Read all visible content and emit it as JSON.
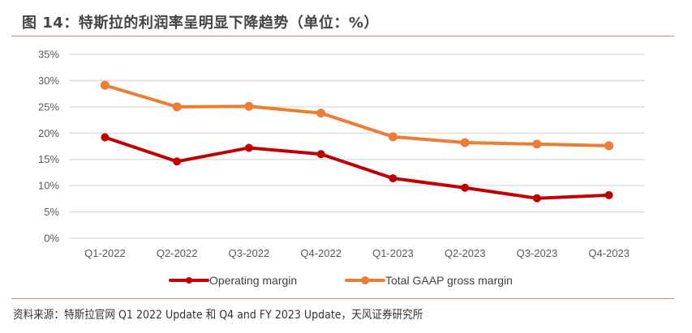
{
  "header": {
    "title": "图 14：特斯拉的利润率呈明显下降趋势（单位：%）"
  },
  "footer": {
    "source": "资料来源：特斯拉官网 Q1 2022 Update 和 Q4 and FY 2023 Update，天风证券研究所"
  },
  "chart_data": {
    "type": "line",
    "title": "特斯拉的利润率呈明显下降趋势（单位：%）",
    "xlabel": "",
    "ylabel": "",
    "categories": [
      "Q1-2022",
      "Q2-2022",
      "Q3-2022",
      "Q4-2022",
      "Q1-2023",
      "Q2-2023",
      "Q3-2023",
      "Q4-2023"
    ],
    "ylim": [
      0,
      35
    ],
    "yticks": [
      0,
      5,
      10,
      15,
      20,
      25,
      30,
      35
    ],
    "ytick_labels": [
      "0%",
      "5%",
      "10%",
      "15%",
      "20%",
      "25%",
      "30%",
      "35%"
    ],
    "grid": true,
    "legend_position": "bottom",
    "series": [
      {
        "name": "Operating margin",
        "color": "#c00000",
        "values": [
          19.2,
          14.6,
          17.2,
          16.0,
          11.4,
          9.6,
          7.6,
          8.2
        ]
      },
      {
        "name": "Total GAAP gross margin",
        "color": "#ed7d31",
        "values": [
          29.1,
          25.0,
          25.1,
          23.8,
          19.3,
          18.2,
          17.9,
          17.6
        ]
      }
    ]
  }
}
